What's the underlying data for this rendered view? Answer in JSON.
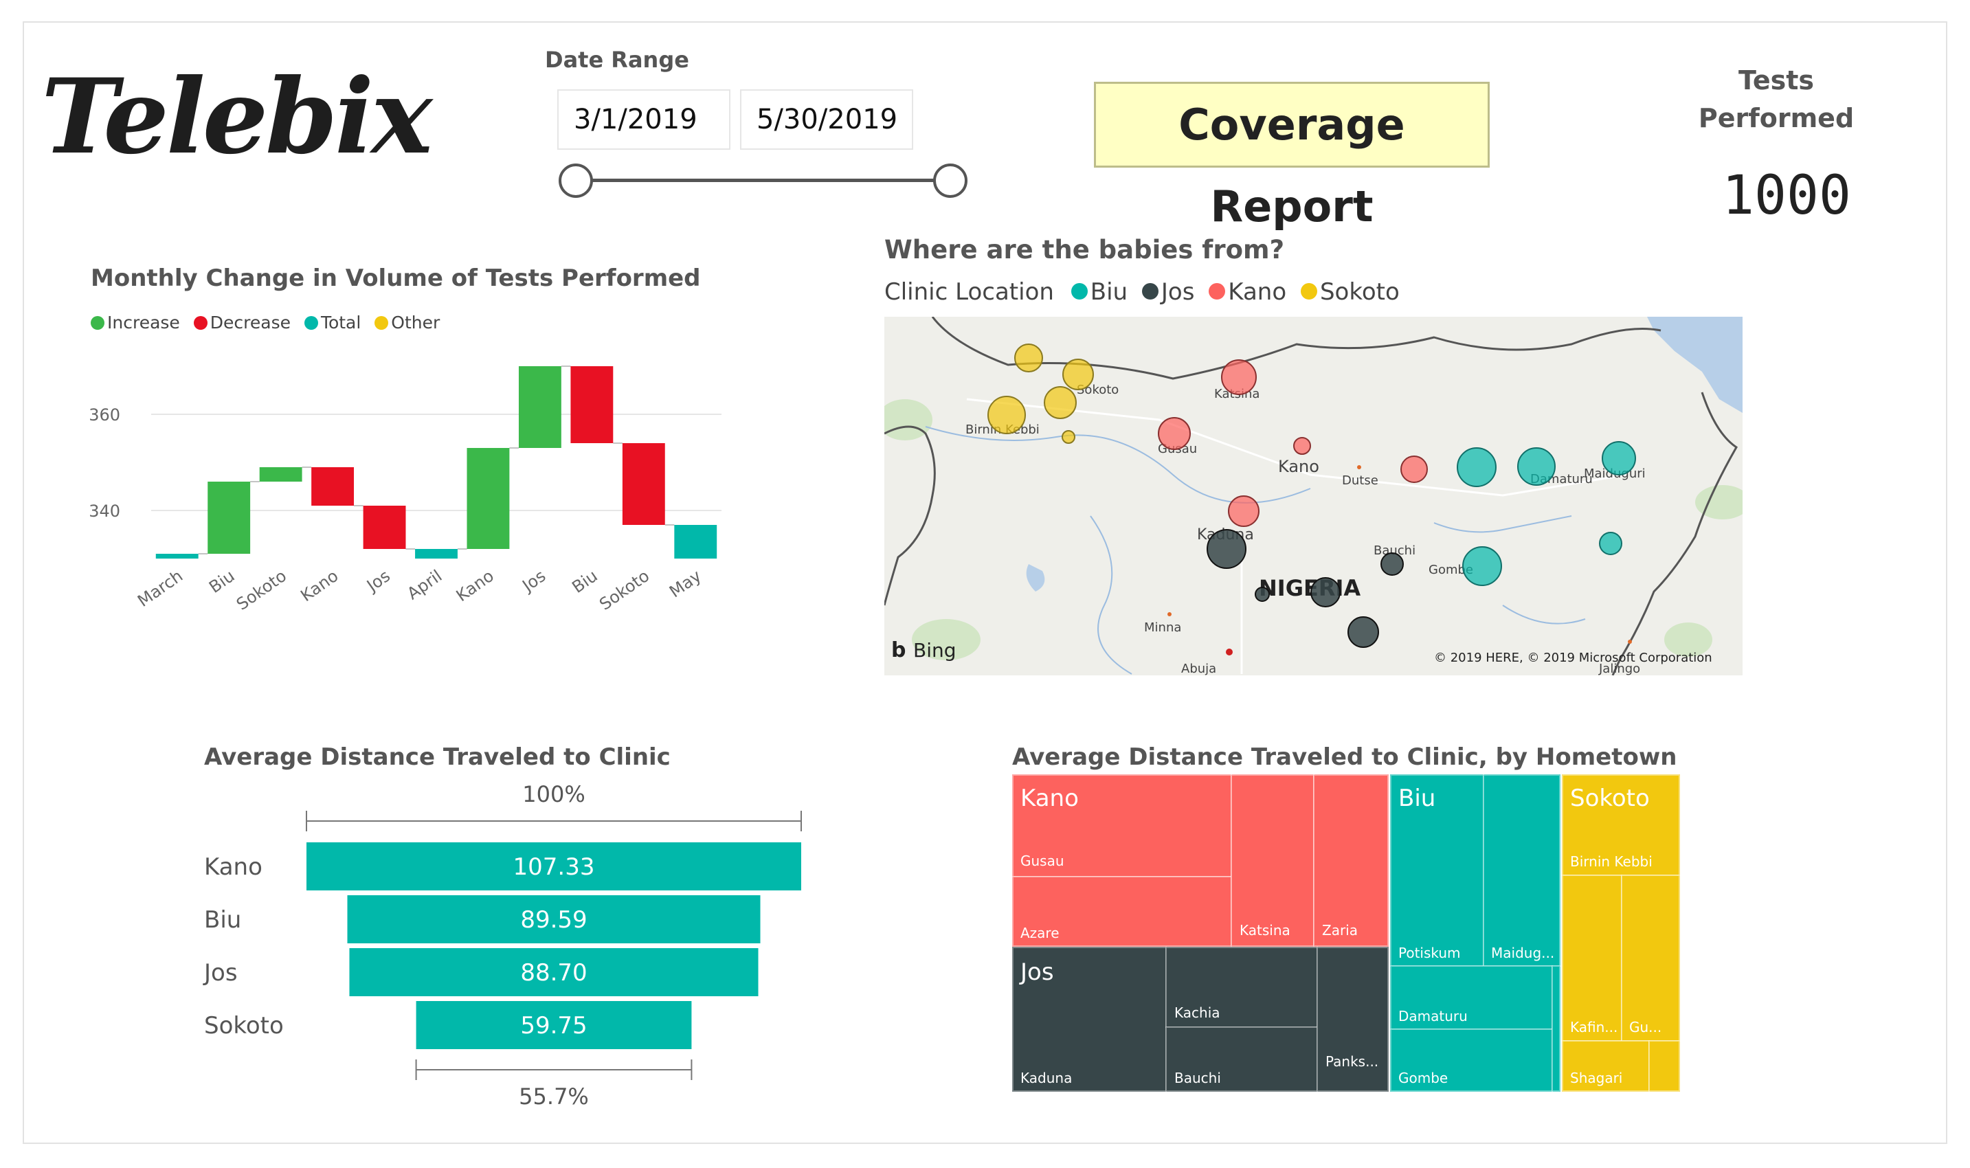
{
  "brand": {
    "logo_text": "Telebix"
  },
  "date_range": {
    "label": "Date Range",
    "start": "3/1/2019",
    "end": "5/30/2019"
  },
  "report": {
    "title": "Coverage Report"
  },
  "kpi": {
    "label_line1": "Tests",
    "label_line2": "Performed",
    "value": "1000"
  },
  "colors": {
    "increase": "#3bb84a",
    "decrease": "#e81123",
    "total": "#01b8aa",
    "other": "#f2c80f",
    "jos": "#374649",
    "kano": "#fd625e",
    "teal": "#01b8aa"
  },
  "waterfall": {
    "title": "Monthly Change in Volume of Tests Performed",
    "legend": [
      {
        "label": "Increase",
        "color": "#3bb84a"
      },
      {
        "label": "Decrease",
        "color": "#e81123"
      },
      {
        "label": "Total",
        "color": "#01b8aa"
      },
      {
        "label": "Other",
        "color": "#f2c80f"
      }
    ]
  },
  "chart_data": [
    {
      "type": "bar",
      "subtype": "waterfall",
      "title": "Monthly Change in Volume of Tests Performed",
      "categories": [
        "March",
        "Biu",
        "Sokoto",
        "Kano",
        "Jos",
        "April",
        "Kano",
        "Jos",
        "Biu",
        "Sokoto",
        "May"
      ],
      "bars": [
        {
          "label": "March",
          "kind": "Total",
          "start": 330,
          "end": 331
        },
        {
          "label": "Biu",
          "kind": "Increase",
          "start": 331,
          "end": 346
        },
        {
          "label": "Sokoto",
          "kind": "Increase",
          "start": 346,
          "end": 349
        },
        {
          "label": "Kano",
          "kind": "Decrease",
          "start": 349,
          "end": 341
        },
        {
          "label": "Jos",
          "kind": "Decrease",
          "start": 341,
          "end": 332
        },
        {
          "label": "April",
          "kind": "Total",
          "start": 330,
          "end": 332
        },
        {
          "label": "Kano",
          "kind": "Increase",
          "start": 332,
          "end": 353
        },
        {
          "label": "Jos",
          "kind": "Increase",
          "start": 353,
          "end": 370
        },
        {
          "label": "Biu",
          "kind": "Decrease",
          "start": 370,
          "end": 354
        },
        {
          "label": "Sokoto",
          "kind": "Decrease",
          "start": 354,
          "end": 337
        },
        {
          "label": "May",
          "kind": "Total",
          "start": 330,
          "end": 337
        }
      ],
      "y_ticks": [
        340,
        360
      ],
      "ylim": [
        329,
        374
      ],
      "grid": true
    },
    {
      "type": "bar",
      "subtype": "funnel",
      "title": "Average Distance Traveled to Clinic",
      "categories": [
        "Kano",
        "Biu",
        "Jos",
        "Sokoto"
      ],
      "values": [
        107.33,
        89.59,
        88.7,
        59.75
      ],
      "value_labels": [
        "107.33",
        "89.59",
        "88.70",
        "59.75"
      ],
      "top_percent": "100%",
      "bottom_percent": "55.7%"
    }
  ],
  "map": {
    "title": "Where are the babies from?",
    "legend_title": "Clinic Location",
    "legend": [
      {
        "label": "Biu",
        "color": "#01b8aa"
      },
      {
        "label": "Jos",
        "color": "#374649"
      },
      {
        "label": "Kano",
        "color": "#fd625e"
      },
      {
        "label": "Sokoto",
        "color": "#f2c80f"
      }
    ],
    "country_label": "NIGERIA",
    "place_labels": [
      "Sokoto",
      "Birnin Kebbi",
      "Katsina",
      "Gusau",
      "Kano",
      "Dutse",
      "Damaturu",
      "Maiduguri",
      "Kaduna",
      "Bauchi",
      "Gombe",
      "Minna",
      "Abuja",
      "Jalingo"
    ],
    "bing_label": "Bing",
    "copyright": "© 2019 HERE, © 2019 Microsoft Corporation"
  },
  "funnel": {
    "title": "Average Distance Traveled to Clinic"
  },
  "treemap": {
    "title": "Average Distance Traveled to Clinic, by Hometown",
    "groups": [
      {
        "name": "Kano",
        "color": "#fd625e",
        "children": [
          "Gusau",
          "Azare",
          "Katsina",
          "Zaria"
        ]
      },
      {
        "name": "Jos",
        "color": "#374649",
        "children": [
          "Kaduna",
          "Kachia",
          "Bauchi",
          "Panks..."
        ]
      },
      {
        "name": "Biu",
        "color": "#01b8aa",
        "children": [
          "Potiskum",
          "Maidug...",
          "Damaturu",
          "Gombe"
        ]
      },
      {
        "name": "Sokoto",
        "color": "#f2c80f",
        "children": [
          "Birnin Kebbi",
          "Kafin...",
          "Gu...",
          "Shagari"
        ]
      }
    ]
  }
}
